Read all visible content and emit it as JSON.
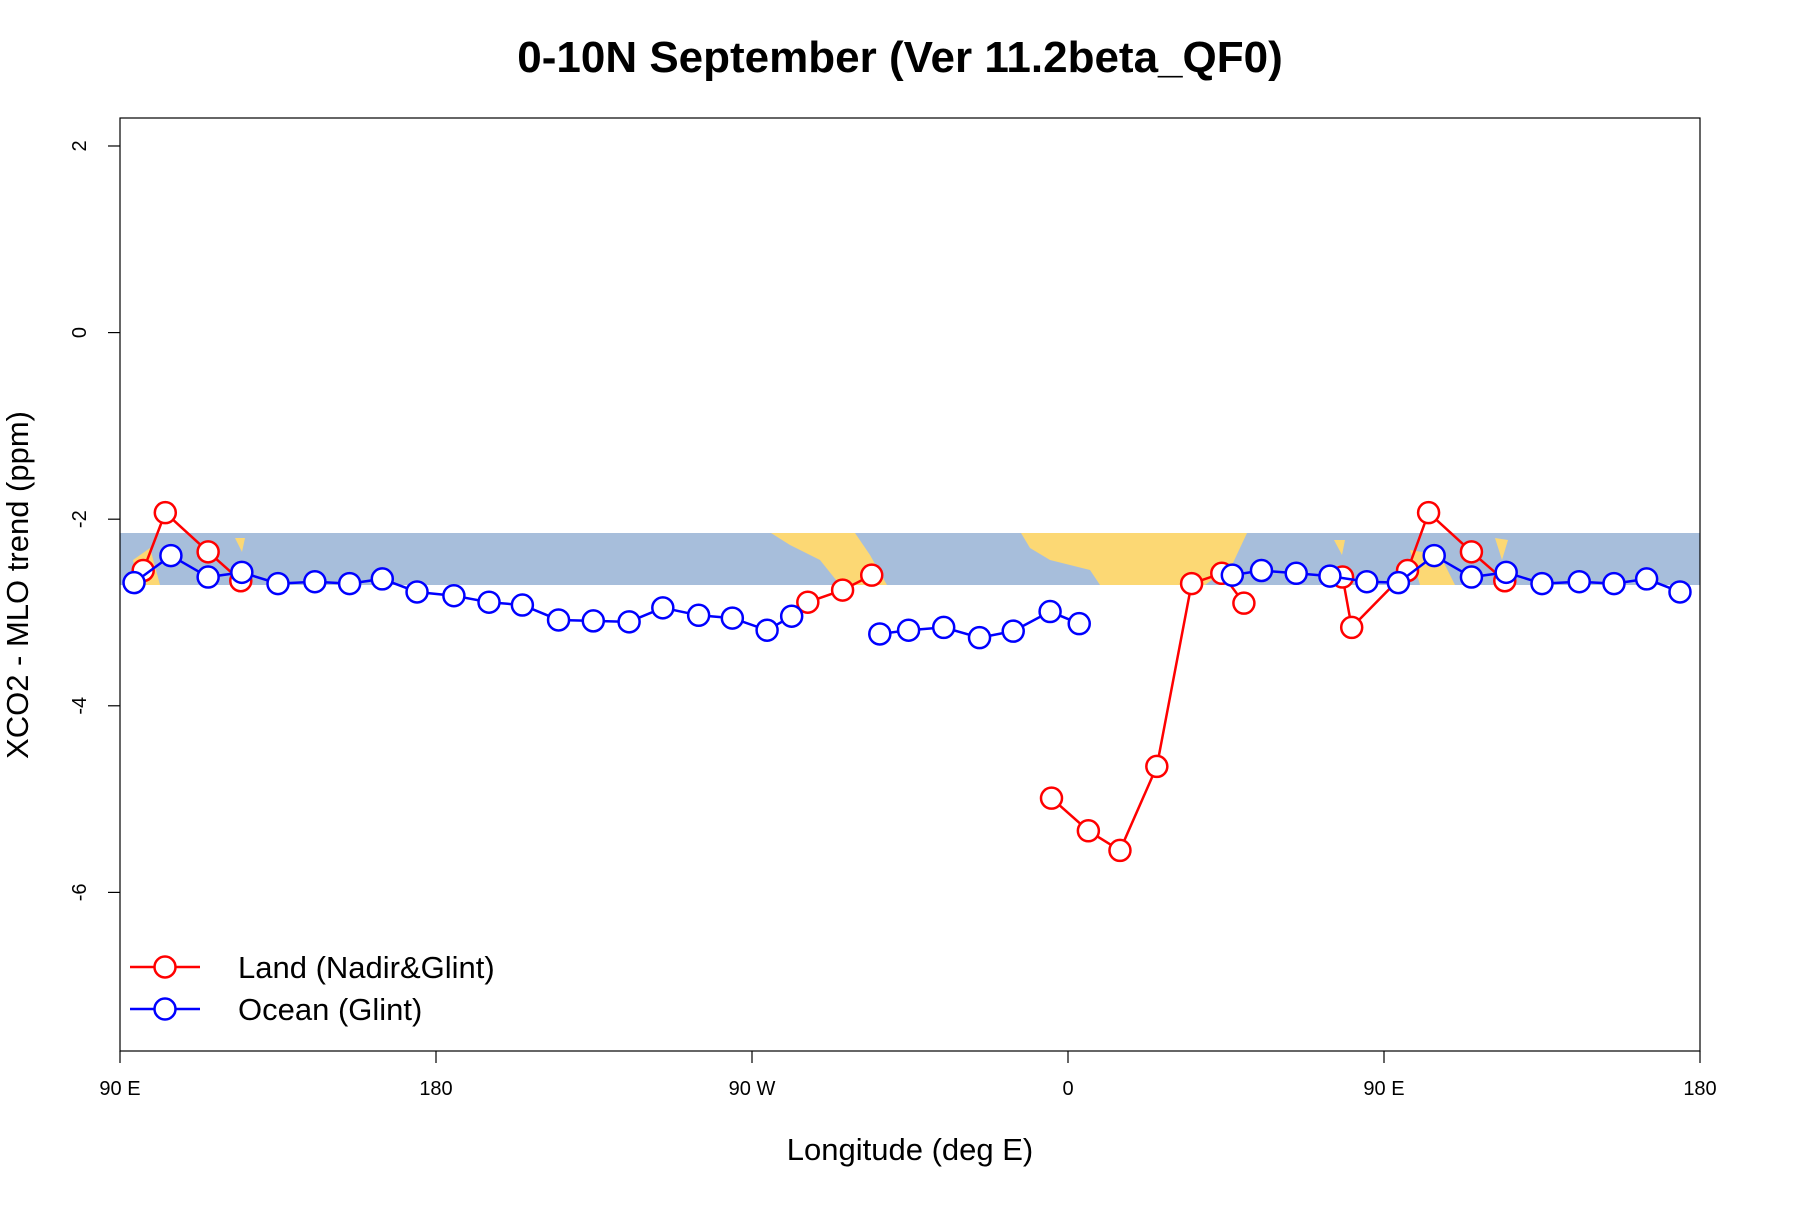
{
  "chart_data": {
    "type": "line",
    "title": "0-10N September (Ver 11.2beta_QF0)",
    "x_label": "Longitude (deg E)",
    "y_label": "XCO2 - MLO trend (ppm)",
    "xlim": [
      90,
      540
    ],
    "xticks": [
      {
        "value": 90,
        "label": "90 E"
      },
      180,
      {
        "value": 270,
        "label": "90 W"
      },
      {
        "value": 360,
        "label": "0"
      },
      {
        "value": 450,
        "label": "90 E"
      },
      {
        "value": 540,
        "label": "180"
      }
    ],
    "ylim": [
      -7.7,
      2.3
    ],
    "yticks": [
      2,
      0,
      -2,
      -4,
      -6
    ],
    "legend": "bottomleft",
    "series": [
      {
        "name": "Land (Nadir&Glint)",
        "color": "#ff0000",
        "x": [
          96.6,
          102.9,
          115.1,
          124.4,
          200,
          285.9,
          295.8,
          304.1,
          330,
          355.3,
          365.8,
          374.8,
          385.3,
          395.2,
          403.8,
          410.1,
          425,
          438.2,
          440.8,
          456.7,
          462.7,
          474.9,
          484.4
        ],
        "values": [
          -2.55,
          -1.93,
          -2.35,
          -2.66,
          null,
          -2.89,
          -2.76,
          -2.6,
          null,
          -4.99,
          -5.34,
          -5.55,
          -4.65,
          -2.69,
          -2.58,
          -2.9,
          null,
          -2.62,
          -3.16,
          -2.55,
          -1.93,
          -2.35,
          -2.66
        ]
      },
      {
        "name": "Ocean (Glint)",
        "color": "#0000ff",
        "x": [
          94.0,
          104.5,
          115.1,
          124.7,
          135.0,
          145.5,
          155.4,
          164.7,
          174.6,
          185.1,
          195.1,
          204.6,
          214.9,
          224.8,
          235.0,
          244.6,
          254.8,
          264.4,
          274.3,
          281.3,
          294,
          306.4,
          314.6,
          324.6,
          334.8,
          344.4,
          354.9,
          363.2,
          385,
          406.8,
          415.1,
          425.0,
          434.6,
          445.1,
          454.1,
          464.3,
          474.9,
          484.8,
          495.0,
          505.6,
          515.5,
          524.8,
          534.3
        ],
        "values": [
          -2.68,
          -2.39,
          -2.62,
          -2.57,
          -2.69,
          -2.67,
          -2.69,
          -2.64,
          -2.78,
          -2.82,
          -2.89,
          -2.92,
          -3.08,
          -3.09,
          -3.1,
          -2.95,
          -3.03,
          -3.06,
          -3.19,
          -3.04,
          null,
          -3.23,
          -3.19,
          -3.16,
          -3.27,
          -3.2,
          -2.99,
          -3.12,
          null,
          -2.6,
          -2.55,
          -2.58,
          -2.61,
          -2.67,
          -2.68,
          -2.39,
          -2.62,
          -2.57,
          -2.69,
          -2.67,
          -2.69,
          -2.64,
          -2.78
        ]
      }
    ]
  }
}
